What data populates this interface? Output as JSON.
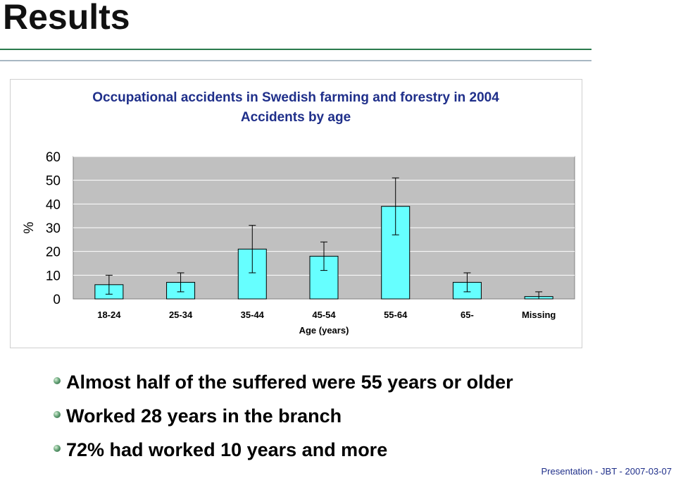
{
  "slide": {
    "title": "Results",
    "bullets": [
      "Almost half of the suffered were 55 years or older",
      "Worked 28 years in the branch",
      "72% had worked 10 years and more"
    ],
    "footer": "Presentation  -  JBT  -  2007-03-07"
  },
  "chart_data": {
    "type": "bar",
    "title": "Occupational accidents in Swedish farming and forestry in 2004",
    "subtitle": "Accidents by age",
    "xlabel": "Age (years)",
    "ylabel": "%",
    "categories": [
      "18-24",
      "25-34",
      "35-44",
      "45-54",
      "55-64",
      "65-",
      "Missing"
    ],
    "values": [
      6,
      7,
      21,
      18,
      39,
      7,
      1
    ],
    "error_low": [
      2,
      3,
      11,
      12,
      27,
      3,
      0
    ],
    "error_high": [
      10,
      11,
      31,
      24,
      51,
      11,
      3
    ],
    "ylim": [
      0,
      60
    ],
    "yticks": [
      0,
      10,
      20,
      30,
      40,
      50,
      60
    ],
    "grid": true,
    "legend": "none",
    "colors": {
      "bar": "#66ffff",
      "plot_bg": "#c0c0c0",
      "grid": "#ffffff",
      "outline": "#000000"
    }
  }
}
